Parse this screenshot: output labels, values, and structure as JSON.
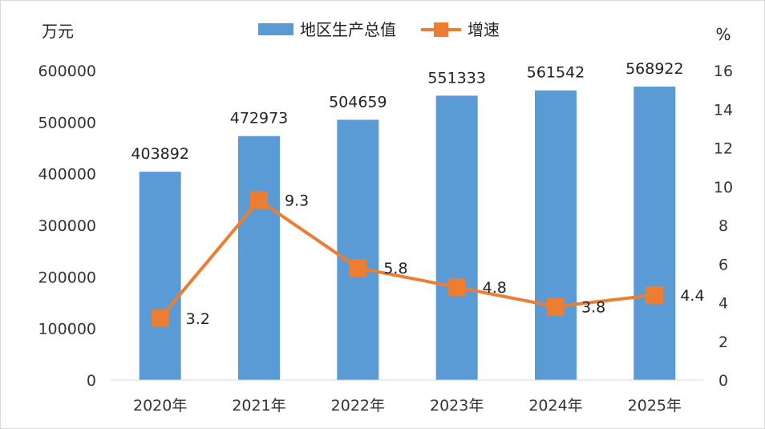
{
  "chart_data": {
    "type": "bar",
    "categories": [
      "2020年",
      "2021年",
      "2022年",
      "2023年",
      "2024年",
      "2025年"
    ],
    "series": [
      {
        "name": "地区生产总值",
        "type": "bar",
        "axis": "left",
        "color": "#5b9bd5",
        "values": [
          403892,
          472973,
          504659,
          551333,
          561542,
          568922
        ]
      },
      {
        "name": "增速",
        "type": "line",
        "axis": "right",
        "color": "#ed7d31",
        "values": [
          3.2,
          9.3,
          5.8,
          4.8,
          3.8,
          4.4
        ]
      }
    ],
    "y_left": {
      "label": "万元",
      "min": 0,
      "max": 600000,
      "step": 100000
    },
    "y_right": {
      "label": "%",
      "min": 0,
      "max": 16,
      "step": 2
    },
    "legend_position": "top-center",
    "grid": false
  }
}
